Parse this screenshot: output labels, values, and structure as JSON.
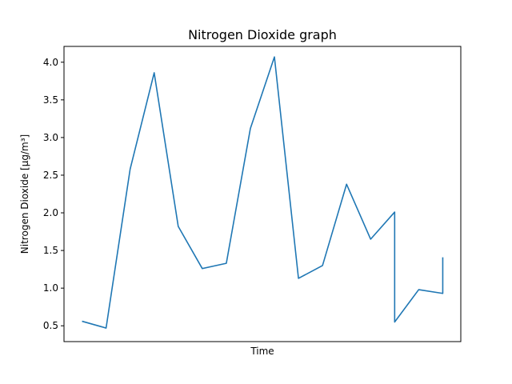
{
  "chart_data": {
    "type": "line",
    "title": "Nitrogen Dioxide graph",
    "xlabel": "Time",
    "ylabel": "Nitrogen Dioxide [µg/m³]",
    "ylim": [
      0.29,
      4.21
    ],
    "yticks": [
      0.5,
      1.0,
      1.5,
      2.0,
      2.5,
      3.0,
      3.5,
      4.0
    ],
    "ytick_labels": [
      "0.5",
      "1.0",
      "1.5",
      "2.0",
      "2.5",
      "3.0",
      "3.5",
      "4.0"
    ],
    "xlim": [
      -0.75,
      15.75
    ],
    "series": [
      {
        "color": "#1f77b4",
        "x": [
          0,
          1,
          2,
          3,
          4,
          5,
          6,
          7,
          8,
          9,
          10,
          11,
          12,
          13,
          13,
          14,
          15,
          15
        ],
        "y": [
          0.56,
          0.47,
          2.58,
          3.86,
          1.82,
          1.26,
          1.33,
          3.12,
          4.07,
          1.13,
          1.3,
          2.38,
          1.65,
          2.01,
          0.55,
          0.98,
          0.93,
          1.41
        ]
      }
    ]
  }
}
